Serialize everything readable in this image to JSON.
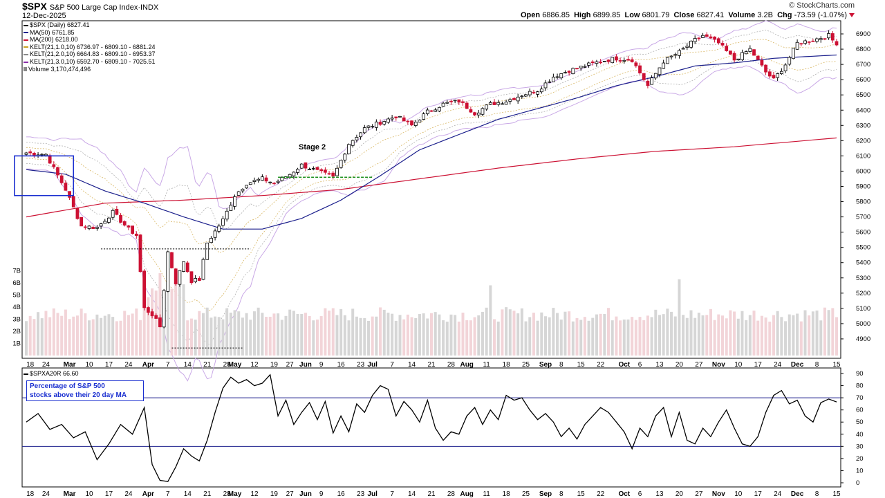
{
  "header": {
    "symbol": "$SPX",
    "name": "S&P 500 Large Cap Index",
    "exchange": "INDX",
    "date": "12-Dec-2025",
    "brand": "© StockCharts.com",
    "open_label": "Open",
    "open": "6886.85",
    "high_label": "High",
    "high": "6899.85",
    "low_label": "Low",
    "low": "6801.79",
    "close_label": "Close",
    "close": "6827.41",
    "volume_label": "Volume",
    "volume": "3.2B",
    "chg_label": "Chg",
    "chg": "-73.59 (-1.07%)"
  },
  "legend": [
    {
      "text": "$SPX (Daily) 6827.41",
      "color": "#000000"
    },
    {
      "text": "MA(50) 6761.85",
      "color": "#1b1f8c"
    },
    {
      "text": "MA(200) 6218.00",
      "color": "#cc1133"
    },
    {
      "text": "KELT(21,1.0,10) 6736.97 - 6809.10 - 6881.24",
      "color": "#c8a020"
    },
    {
      "text": "KELT(21,2.0,10) 6664.83 - 6809.10 - 6953.37",
      "color": "#888888"
    },
    {
      "text": "KELT(21,3.0,10) 6592.70 - 6809.10 - 7025.51",
      "color": "#8a2ea8"
    },
    {
      "text": "Volume 3,170,474,496",
      "color": "#888888"
    }
  ],
  "lower": {
    "title": "$SPXA20R 66.60",
    "annotation_line1": "Percentage of S&P 500",
    "annotation_line2": "stocks above their 20 day MA"
  },
  "stage_label": "Stage 2",
  "chart_data": [
    {
      "type": "candlestick",
      "title": "$SPX (Daily)",
      "ylim": [
        4800,
        6950
      ],
      "y_ticks": [
        4900,
        5000,
        5100,
        5200,
        5300,
        5400,
        5500,
        5600,
        5700,
        5800,
        5900,
        6000,
        6100,
        6200,
        6300,
        6400,
        6500,
        6600,
        6700,
        6800,
        6900
      ],
      "x_ticks": [
        "18",
        "24",
        "Mar",
        "10",
        "17",
        "24",
        "Apr",
        "7",
        "14",
        "21",
        "28",
        "May",
        "12",
        "19",
        "27",
        "Jun",
        "9",
        "16",
        "23",
        "Jul",
        "7",
        "14",
        "21",
        "28",
        "Aug",
        "11",
        "18",
        "25",
        "Sep",
        "8",
        "15",
        "22",
        "Oct",
        "6",
        "13",
        "20",
        "27",
        "Nov",
        "10",
        "17",
        "24",
        "Dec",
        "8",
        "15"
      ],
      "x_tick_bars": [
        1,
        5,
        11,
        16,
        21,
        26,
        31,
        36,
        41,
        46,
        51,
        53,
        58,
        63,
        67,
        71,
        75,
        80,
        85,
        88,
        93,
        98,
        103,
        108,
        112,
        117,
        122,
        127,
        132,
        136,
        141,
        146,
        152,
        156,
        161,
        166,
        171,
        176,
        181,
        186,
        191,
        196,
        201,
        206
      ],
      "key_closes": [
        {
          "bar": 0,
          "close": 6120
        },
        {
          "bar": 5,
          "close": 6110
        },
        {
          "bar": 10,
          "close": 5880
        },
        {
          "bar": 14,
          "close": 5640
        },
        {
          "bar": 18,
          "close": 5630
        },
        {
          "bar": 22,
          "close": 5730
        },
        {
          "bar": 26,
          "close": 5620
        },
        {
          "bar": 28,
          "close": 5580
        },
        {
          "bar": 30,
          "close": 5100
        },
        {
          "bar": 32,
          "close": 5060
        },
        {
          "bar": 34,
          "close": 4980
        },
        {
          "bar": 36,
          "close": 5470
        },
        {
          "bar": 38,
          "close": 5270
        },
        {
          "bar": 40,
          "close": 5410
        },
        {
          "bar": 42,
          "close": 5280
        },
        {
          "bar": 44,
          "close": 5290
        },
        {
          "bar": 46,
          "close": 5530
        },
        {
          "bar": 50,
          "close": 5680
        },
        {
          "bar": 53,
          "close": 5840
        },
        {
          "bar": 56,
          "close": 5920
        },
        {
          "bar": 60,
          "close": 5950
        },
        {
          "bar": 63,
          "close": 5920
        },
        {
          "bar": 67,
          "close": 5980
        },
        {
          "bar": 70,
          "close": 6040
        },
        {
          "bar": 74,
          "close": 6000
        },
        {
          "bar": 78,
          "close": 5960
        },
        {
          "bar": 82,
          "close": 6180
        },
        {
          "bar": 86,
          "close": 6280
        },
        {
          "bar": 90,
          "close": 6320
        },
        {
          "bar": 94,
          "close": 6360
        },
        {
          "bar": 98,
          "close": 6300
        },
        {
          "bar": 102,
          "close": 6390
        },
        {
          "bar": 106,
          "close": 6440
        },
        {
          "bar": 110,
          "close": 6460
        },
        {
          "bar": 114,
          "close": 6380
        },
        {
          "bar": 118,
          "close": 6440
        },
        {
          "bar": 122,
          "close": 6460
        },
        {
          "bar": 126,
          "close": 6500
        },
        {
          "bar": 130,
          "close": 6530
        },
        {
          "bar": 134,
          "close": 6620
        },
        {
          "bar": 138,
          "close": 6660
        },
        {
          "bar": 142,
          "close": 6690
        },
        {
          "bar": 146,
          "close": 6720
        },
        {
          "bar": 150,
          "close": 6740
        },
        {
          "bar": 154,
          "close": 6730
        },
        {
          "bar": 158,
          "close": 6560
        },
        {
          "bar": 162,
          "close": 6720
        },
        {
          "bar": 166,
          "close": 6780
        },
        {
          "bar": 170,
          "close": 6860
        },
        {
          "bar": 172,
          "close": 6890
        },
        {
          "bar": 176,
          "close": 6840
        },
        {
          "bar": 180,
          "close": 6730
        },
        {
          "bar": 184,
          "close": 6800
        },
        {
          "bar": 188,
          "close": 6650
        },
        {
          "bar": 190,
          "close": 6600
        },
        {
          "bar": 193,
          "close": 6700
        },
        {
          "bar": 196,
          "close": 6840
        },
        {
          "bar": 200,
          "close": 6860
        },
        {
          "bar": 204,
          "close": 6890
        },
        {
          "bar": 206,
          "close": 6827.41
        }
      ],
      "ma50": [
        {
          "bar": 0,
          "v": 6010
        },
        {
          "bar": 10,
          "v": 5980
        },
        {
          "bar": 20,
          "v": 5870
        },
        {
          "bar": 30,
          "v": 5790
        },
        {
          "bar": 40,
          "v": 5700
        },
        {
          "bar": 50,
          "v": 5620
        },
        {
          "bar": 60,
          "v": 5620
        },
        {
          "bar": 70,
          "v": 5690
        },
        {
          "bar": 80,
          "v": 5810
        },
        {
          "bar": 90,
          "v": 5970
        },
        {
          "bar": 100,
          "v": 6140
        },
        {
          "bar": 110,
          "v": 6240
        },
        {
          "bar": 120,
          "v": 6340
        },
        {
          "bar": 130,
          "v": 6410
        },
        {
          "bar": 140,
          "v": 6480
        },
        {
          "bar": 150,
          "v": 6560
        },
        {
          "bar": 160,
          "v": 6620
        },
        {
          "bar": 170,
          "v": 6690
        },
        {
          "bar": 180,
          "v": 6710
        },
        {
          "bar": 190,
          "v": 6740
        },
        {
          "bar": 206,
          "v": 6761.85
        }
      ],
      "ma200": [
        {
          "bar": 0,
          "v": 5700
        },
        {
          "bar": 20,
          "v": 5790
        },
        {
          "bar": 40,
          "v": 5810
        },
        {
          "bar": 60,
          "v": 5840
        },
        {
          "bar": 80,
          "v": 5880
        },
        {
          "bar": 100,
          "v": 5950
        },
        {
          "bar": 120,
          "v": 6020
        },
        {
          "bar": 140,
          "v": 6080
        },
        {
          "bar": 160,
          "v": 6130
        },
        {
          "bar": 180,
          "v": 6160
        },
        {
          "bar": 206,
          "v": 6218.0
        }
      ],
      "keltner_mid": 6809.1,
      "keltner_1": [
        6736.97,
        6881.24
      ],
      "keltner_2": [
        6664.83,
        6953.37
      ],
      "keltner_3": [
        6592.7,
        7025.51
      ],
      "volume_ylim": [
        0,
        8
      ],
      "volume_unit": "B",
      "volume_ticks": [
        "1B",
        "2B",
        "3B",
        "4B",
        "5B",
        "6B",
        "7B"
      ],
      "last_volume": 3170474496,
      "annotations": [
        {
          "type": "hline",
          "label": "Stage 2",
          "y": 5960,
          "from_bar": 64,
          "to_bar": 88,
          "color": "#1a8f1a"
        },
        {
          "type": "hline",
          "y": 5490,
          "from_bar": 19,
          "to_bar": 57,
          "color": "#000000"
        },
        {
          "type": "hline",
          "y": 4840,
          "from_bar": 37,
          "to_bar": 55,
          "color": "#000000"
        },
        {
          "type": "box",
          "y_range": [
            5840,
            6100
          ],
          "from_bar": -3,
          "to_bar": 12,
          "color": "#1a2fd0"
        }
      ]
    },
    {
      "type": "line",
      "title": "$SPXA20R",
      "ylim": [
        0,
        90
      ],
      "y_ticks": [
        0,
        10,
        20,
        30,
        40,
        50,
        60,
        70,
        80,
        90
      ],
      "hlines": [
        70,
        30
      ],
      "last": 66.6,
      "values": [
        {
          "bar": 0,
          "v": 50
        },
        {
          "bar": 3,
          "v": 57
        },
        {
          "bar": 6,
          "v": 44
        },
        {
          "bar": 9,
          "v": 48
        },
        {
          "bar": 12,
          "v": 37
        },
        {
          "bar": 15,
          "v": 42
        },
        {
          "bar": 18,
          "v": 19
        },
        {
          "bar": 21,
          "v": 32
        },
        {
          "bar": 24,
          "v": 48
        },
        {
          "bar": 27,
          "v": 40
        },
        {
          "bar": 30,
          "v": 62
        },
        {
          "bar": 32,
          "v": 15
        },
        {
          "bar": 34,
          "v": 2
        },
        {
          "bar": 36,
          "v": 1
        },
        {
          "bar": 38,
          "v": 13
        },
        {
          "bar": 40,
          "v": 28
        },
        {
          "bar": 42,
          "v": 22
        },
        {
          "bar": 44,
          "v": 18
        },
        {
          "bar": 46,
          "v": 35
        },
        {
          "bar": 48,
          "v": 58
        },
        {
          "bar": 50,
          "v": 78
        },
        {
          "bar": 52,
          "v": 87
        },
        {
          "bar": 54,
          "v": 82
        },
        {
          "bar": 56,
          "v": 85
        },
        {
          "bar": 58,
          "v": 80
        },
        {
          "bar": 60,
          "v": 82
        },
        {
          "bar": 62,
          "v": 89
        },
        {
          "bar": 64,
          "v": 55
        },
        {
          "bar": 66,
          "v": 68
        },
        {
          "bar": 68,
          "v": 48
        },
        {
          "bar": 70,
          "v": 58
        },
        {
          "bar": 72,
          "v": 66
        },
        {
          "bar": 74,
          "v": 52
        },
        {
          "bar": 76,
          "v": 67
        },
        {
          "bar": 78,
          "v": 41
        },
        {
          "bar": 80,
          "v": 55
        },
        {
          "bar": 82,
          "v": 42
        },
        {
          "bar": 84,
          "v": 65
        },
        {
          "bar": 86,
          "v": 58
        },
        {
          "bar": 88,
          "v": 72
        },
        {
          "bar": 90,
          "v": 80
        },
        {
          "bar": 92,
          "v": 77
        },
        {
          "bar": 94,
          "v": 55
        },
        {
          "bar": 96,
          "v": 67
        },
        {
          "bar": 98,
          "v": 60
        },
        {
          "bar": 100,
          "v": 50
        },
        {
          "bar": 102,
          "v": 68
        },
        {
          "bar": 104,
          "v": 45
        },
        {
          "bar": 106,
          "v": 35
        },
        {
          "bar": 108,
          "v": 42
        },
        {
          "bar": 110,
          "v": 40
        },
        {
          "bar": 112,
          "v": 55
        },
        {
          "bar": 114,
          "v": 62
        },
        {
          "bar": 116,
          "v": 48
        },
        {
          "bar": 118,
          "v": 60
        },
        {
          "bar": 120,
          "v": 52
        },
        {
          "bar": 122,
          "v": 72
        },
        {
          "bar": 124,
          "v": 68
        },
        {
          "bar": 126,
          "v": 70
        },
        {
          "bar": 128,
          "v": 60
        },
        {
          "bar": 130,
          "v": 52
        },
        {
          "bar": 132,
          "v": 57
        },
        {
          "bar": 134,
          "v": 50
        },
        {
          "bar": 136,
          "v": 38
        },
        {
          "bar": 138,
          "v": 45
        },
        {
          "bar": 140,
          "v": 36
        },
        {
          "bar": 142,
          "v": 48
        },
        {
          "bar": 144,
          "v": 55
        },
        {
          "bar": 146,
          "v": 62
        },
        {
          "bar": 148,
          "v": 58
        },
        {
          "bar": 150,
          "v": 50
        },
        {
          "bar": 152,
          "v": 42
        },
        {
          "bar": 154,
          "v": 28
        },
        {
          "bar": 156,
          "v": 45
        },
        {
          "bar": 158,
          "v": 38
        },
        {
          "bar": 160,
          "v": 55
        },
        {
          "bar": 162,
          "v": 62
        },
        {
          "bar": 164,
          "v": 38
        },
        {
          "bar": 166,
          "v": 58
        },
        {
          "bar": 168,
          "v": 35
        },
        {
          "bar": 170,
          "v": 32
        },
        {
          "bar": 172,
          "v": 45
        },
        {
          "bar": 174,
          "v": 38
        },
        {
          "bar": 176,
          "v": 50
        },
        {
          "bar": 178,
          "v": 60
        },
        {
          "bar": 180,
          "v": 45
        },
        {
          "bar": 182,
          "v": 32
        },
        {
          "bar": 184,
          "v": 30
        },
        {
          "bar": 186,
          "v": 38
        },
        {
          "bar": 188,
          "v": 58
        },
        {
          "bar": 190,
          "v": 72
        },
        {
          "bar": 192,
          "v": 76
        },
        {
          "bar": 194,
          "v": 65
        },
        {
          "bar": 196,
          "v": 68
        },
        {
          "bar": 198,
          "v": 55
        },
        {
          "bar": 200,
          "v": 50
        },
        {
          "bar": 202,
          "v": 66
        },
        {
          "bar": 204,
          "v": 69
        },
        {
          "bar": 206,
          "v": 66.6
        }
      ]
    }
  ]
}
